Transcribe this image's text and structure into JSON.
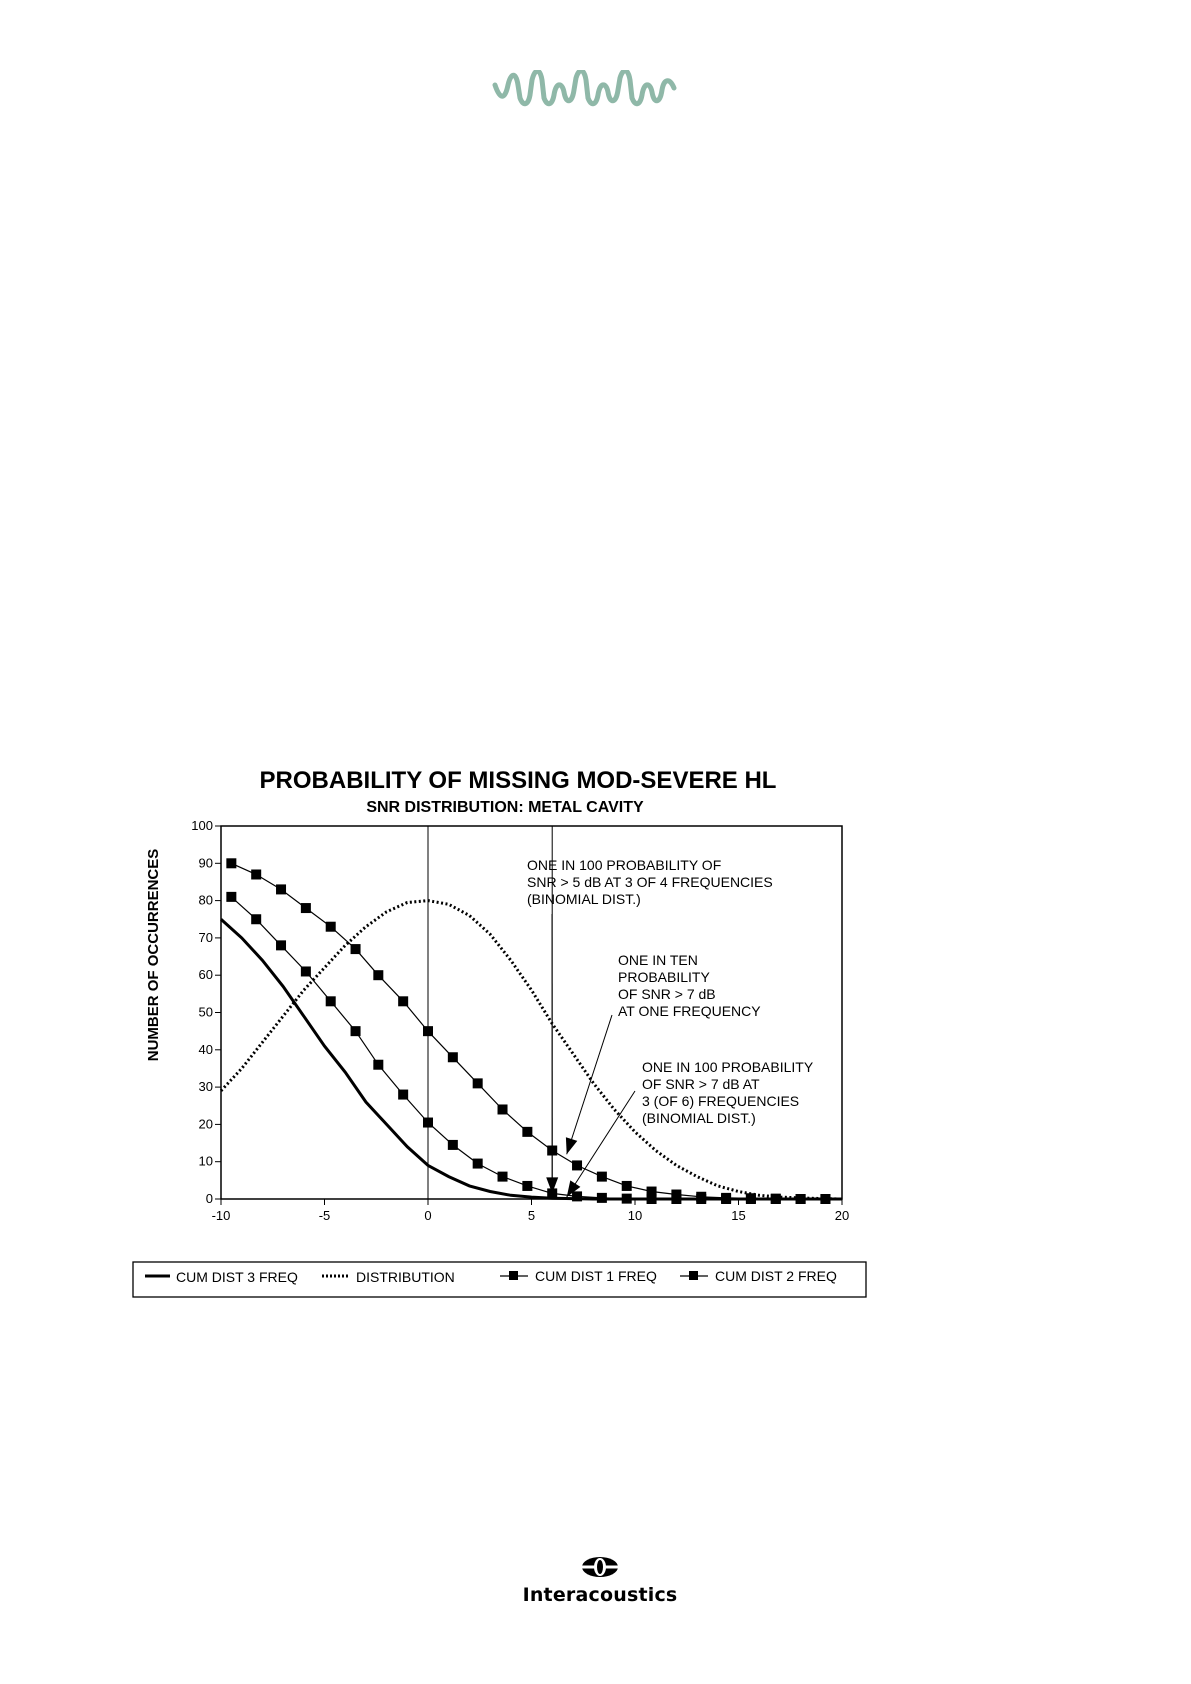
{
  "header": {
    "logo_icon": "wave-logo-icon",
    "logo_color": "#8fb8a8"
  },
  "footer": {
    "brand": "Interacoustics",
    "logo_icon": "globe-logo-icon"
  },
  "chart_data": {
    "type": "line",
    "title": "PROBABILITY OF MISSING MOD-SEVERE HL",
    "subtitle": "SNR DISTRIBUTION:  METAL CAVITY",
    "xlabel": "",
    "ylabel": "NUMBER OF OCCURRENCES",
    "xlim": [
      -10,
      20
    ],
    "ylim": [
      0,
      100
    ],
    "xticks": [
      -10,
      -5,
      0,
      5,
      10,
      15,
      20
    ],
    "yticks": [
      0,
      10,
      20,
      30,
      40,
      50,
      60,
      70,
      80,
      90,
      100
    ],
    "grid": false,
    "legend_position": "bottom",
    "series": [
      {
        "name": "CUM DIST 3 FREQ",
        "style": "solid-thick",
        "x": [
          -10,
          -9,
          -8,
          -7,
          -6,
          -5,
          -4,
          -3,
          -2,
          -1,
          0,
          1,
          2,
          3,
          4,
          5,
          6,
          7,
          8,
          10,
          12,
          15,
          20
        ],
        "y": [
          75,
          70,
          64,
          57,
          49,
          41,
          34,
          26,
          20,
          14,
          9,
          6,
          3.5,
          2,
          1,
          0.5,
          0.2,
          0.1,
          0,
          0,
          0,
          0,
          0
        ]
      },
      {
        "name": "DISTRIBUTION",
        "style": "dotted",
        "x": [
          -10,
          -9,
          -8,
          -7,
          -6,
          -5,
          -4,
          -3,
          -2,
          -1,
          0,
          1,
          2,
          3,
          4,
          5,
          6,
          7,
          8,
          9,
          10,
          11,
          12,
          13,
          14,
          15,
          16,
          17,
          18,
          19,
          20
        ],
        "y": [
          29,
          35,
          42,
          49,
          56,
          62,
          68,
          73,
          77,
          79.5,
          80,
          79,
          76,
          71,
          64,
          56,
          47,
          39,
          31,
          24,
          18,
          13,
          9,
          6,
          3.5,
          2,
          1,
          0.5,
          0.3,
          0.1,
          0
        ]
      },
      {
        "name": "CUM DIST 1 FREQ",
        "style": "solid-square",
        "x": [
          -9.5,
          -8.3,
          -7.1,
          -5.9,
          -4.7,
          -3.5,
          -2.4,
          -1.2,
          0,
          1.2,
          2.4,
          3.6,
          4.8,
          6,
          7.2,
          8.4,
          9.6,
          10.8,
          12,
          13.2,
          14.4,
          15.6,
          16.8,
          18,
          19.2
        ],
        "y": [
          90,
          87,
          83,
          78,
          73,
          67,
          60,
          53,
          45,
          38,
          31,
          24,
          18,
          13,
          9,
          6,
          3.5,
          2,
          1.2,
          0.6,
          0.3,
          0.2,
          0.1,
          0,
          0
        ]
      },
      {
        "name": "CUM DIST 2 FREQ",
        "style": "solid-square",
        "x": [
          -9.5,
          -8.3,
          -7.1,
          -5.9,
          -4.7,
          -3.5,
          -2.4,
          -1.2,
          0,
          1.2,
          2.4,
          3.6,
          4.8,
          6,
          7.2,
          8.4,
          9.6,
          10.8,
          12,
          13.2,
          14.4,
          15.6,
          16.8,
          18,
          19.2
        ],
        "y": [
          81,
          75,
          68,
          61,
          53,
          45,
          36,
          28,
          20.5,
          14.5,
          9.5,
          6,
          3.5,
          1.5,
          0.7,
          0.3,
          0.1,
          0,
          0,
          0,
          0,
          0,
          0,
          0,
          0
        ]
      }
    ],
    "annotations": [
      {
        "lines": [
          "ONE IN 100 PROBABILITY OF",
          "SNR > 5 dB AT 3 OF 4 FREQUENCIES",
          "(BINOMIAL DIST.)"
        ],
        "arrow_to": [
          6,
          1.5
        ]
      },
      {
        "lines": [
          "ONE IN TEN",
          "PROBABILITY",
          "OF SNR > 7 dB",
          "AT ONE FREQUENCY"
        ],
        "arrow_to": [
          6.7,
          12
        ]
      },
      {
        "lines": [
          "ONE IN 100 PROBABILITY",
          "OF SNR > 7 dB AT",
          "3 (OF 6) FREQUENCIES",
          "(BINOMIAL DIST.)"
        ],
        "arrow_to": [
          6.7,
          0.5
        ]
      }
    ],
    "vertical_lines": [
      0,
      6
    ]
  }
}
